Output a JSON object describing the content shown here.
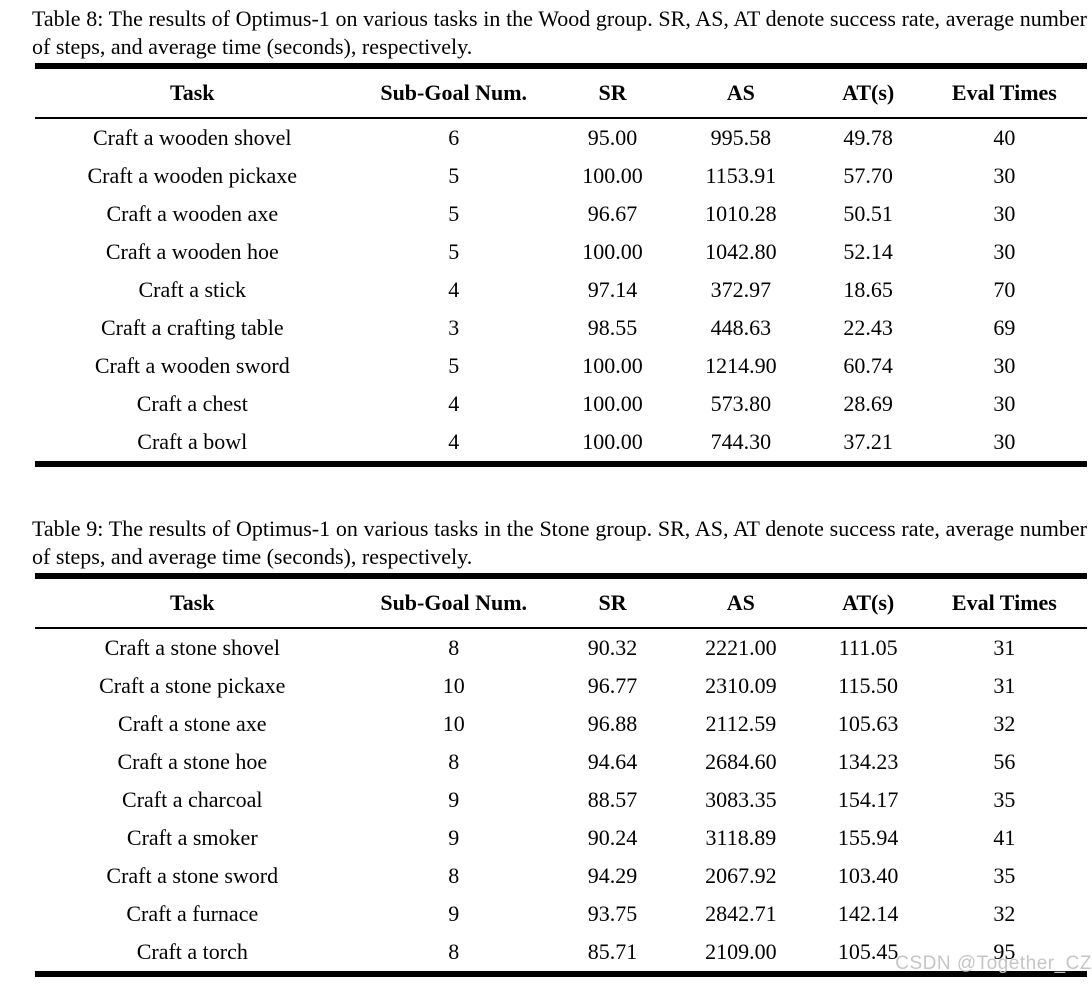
{
  "watermark": "CSDN @Together_CZ",
  "tables": [
    {
      "caption": "Table 8: The results of Optimus-1 on various tasks in the Wood group. SR, AS, AT denote success rate, average number of steps, and average time (seconds), respectively.",
      "columns": [
        "Task",
        "Sub-Goal Num.",
        "SR",
        "AS",
        "AT(s)",
        "Eval Times"
      ],
      "rows": [
        [
          "Craft a wooden shovel",
          "6",
          "95.00",
          "995.58",
          "49.78",
          "40"
        ],
        [
          "Craft a wooden pickaxe",
          "5",
          "100.00",
          "1153.91",
          "57.70",
          "30"
        ],
        [
          "Craft a wooden axe",
          "5",
          "96.67",
          "1010.28",
          "50.51",
          "30"
        ],
        [
          "Craft a wooden hoe",
          "5",
          "100.00",
          "1042.80",
          "52.14",
          "30"
        ],
        [
          "Craft a stick",
          "4",
          "97.14",
          "372.97",
          "18.65",
          "70"
        ],
        [
          "Craft a crafting table",
          "3",
          "98.55",
          "448.63",
          "22.43",
          "69"
        ],
        [
          "Craft a wooden sword",
          "5",
          "100.00",
          "1214.90",
          "60.74",
          "30"
        ],
        [
          "Craft a chest",
          "4",
          "100.00",
          "573.80",
          "28.69",
          "30"
        ],
        [
          "Craft a bowl",
          "4",
          "100.00",
          "744.30",
          "37.21",
          "30"
        ]
      ]
    },
    {
      "caption": "Table 9: The results of Optimus-1 on various tasks in the Stone group. SR, AS, AT denote success rate, average number of steps, and average time (seconds), respectively.",
      "columns": [
        "Task",
        "Sub-Goal Num.",
        "SR",
        "AS",
        "AT(s)",
        "Eval Times"
      ],
      "rows": [
        [
          "Craft a stone shovel",
          "8",
          "90.32",
          "2221.00",
          "111.05",
          "31"
        ],
        [
          "Craft a stone pickaxe",
          "10",
          "96.77",
          "2310.09",
          "115.50",
          "31"
        ],
        [
          "Craft a stone axe",
          "10",
          "96.88",
          "2112.59",
          "105.63",
          "32"
        ],
        [
          "Craft a stone hoe",
          "8",
          "94.64",
          "2684.60",
          "134.23",
          "56"
        ],
        [
          "Craft a charcoal",
          "9",
          "88.57",
          "3083.35",
          "154.17",
          "35"
        ],
        [
          "Craft a smoker",
          "9",
          "90.24",
          "3118.89",
          "155.94",
          "41"
        ],
        [
          "Craft a stone sword",
          "8",
          "94.29",
          "2067.92",
          "103.40",
          "35"
        ],
        [
          "Craft a furnace",
          "9",
          "93.75",
          "2842.71",
          "142.14",
          "32"
        ],
        [
          "Craft a torch",
          "8",
          "85.71",
          "2109.00",
          "105.45",
          "95"
        ]
      ]
    }
  ]
}
